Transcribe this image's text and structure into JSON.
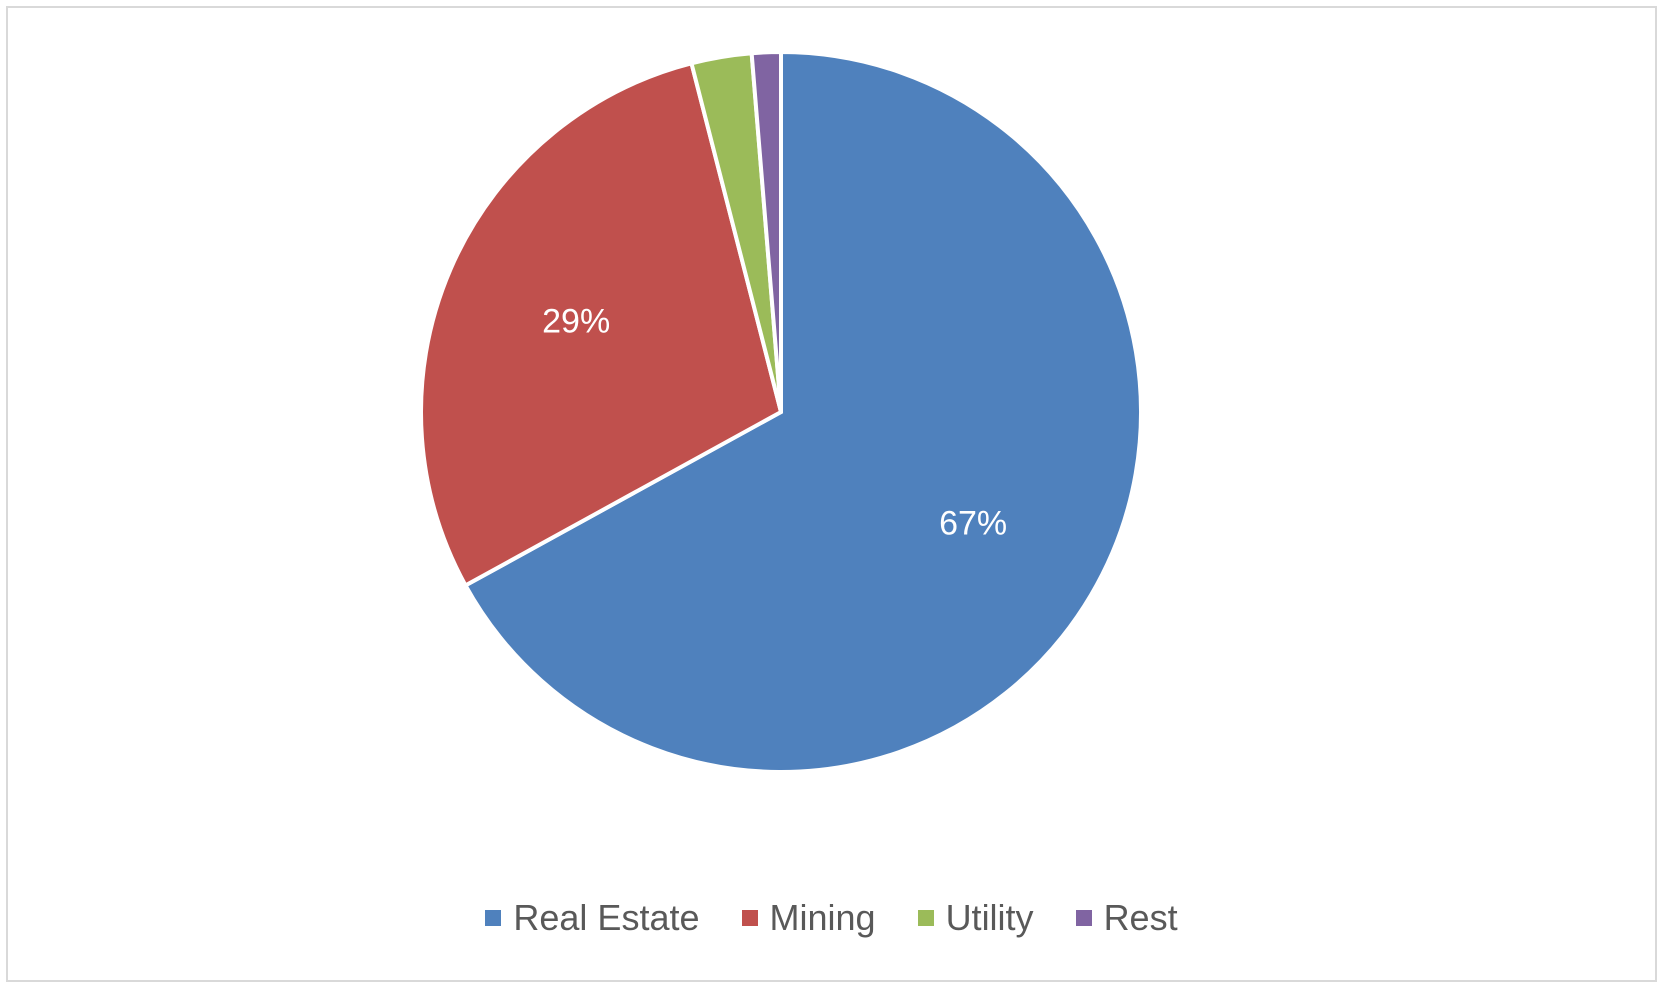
{
  "chart_data": {
    "type": "pie",
    "categories": [
      "Real Estate",
      "Mining",
      "Utility",
      "Rest"
    ],
    "values": [
      67,
      29,
      2.7,
      1.3
    ],
    "data_labels": [
      "67%",
      "29%",
      "",
      ""
    ],
    "colors": [
      "#4f81bd",
      "#c0504d",
      "#9bbb59",
      "#8064a2"
    ],
    "legend_position": "bottom",
    "start_angle": "12 o'clock",
    "direction": "clockwise"
  }
}
